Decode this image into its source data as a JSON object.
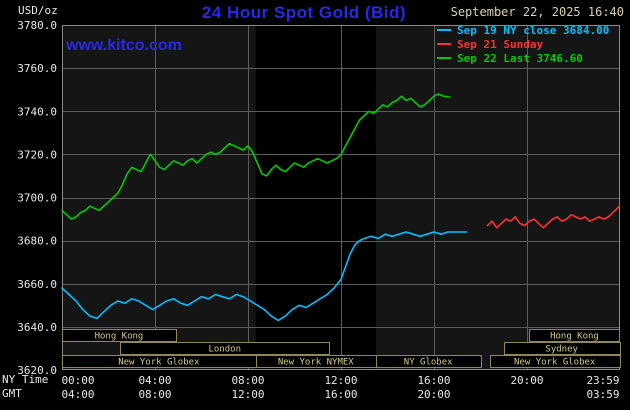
{
  "header": {
    "title": "24 Hour Spot Gold (Bid)",
    "datetime": "September 22, 2025 16:40",
    "unit_label": "USD/oz",
    "watermark": "www.kitco.com"
  },
  "legend": {
    "items": [
      {
        "label": "Sep 19 NY close 3684.00",
        "color": "#00bfff"
      },
      {
        "label": "Sep 21 Sunday",
        "color": "#ff3232"
      },
      {
        "label": "Sep 22 Last 3746.60",
        "color": "#00cc00"
      }
    ]
  },
  "axes": {
    "ny_label": "NY Time",
    "gmt_label": "GMT",
    "y_ticks": [
      {
        "v": 3780,
        "label": "3780.0"
      },
      {
        "v": 3760,
        "label": "3760.0"
      },
      {
        "v": 3740,
        "label": "3740.0"
      },
      {
        "v": 3720,
        "label": "3720.0"
      },
      {
        "v": 3700,
        "label": "3700.0"
      },
      {
        "v": 3680,
        "label": "3680.0"
      },
      {
        "v": 3660,
        "label": "3660.0"
      },
      {
        "v": 3640,
        "label": "3640.0"
      },
      {
        "v": 3620,
        "label": "3620.0"
      }
    ],
    "x_ticks_ny": [
      {
        "t": 0,
        "label": "00:00"
      },
      {
        "t": 4,
        "label": "04:00"
      },
      {
        "t": 8,
        "label": "08:00"
      },
      {
        "t": 12,
        "label": "12:00"
      },
      {
        "t": 16,
        "label": "16:00"
      },
      {
        "t": 20,
        "label": "20:00"
      },
      {
        "t": 23.983,
        "label": "23:59"
      }
    ],
    "x_ticks_gmt": [
      {
        "t": 0,
        "label": "04:00"
      },
      {
        "t": 4,
        "label": "08:00"
      },
      {
        "t": 8,
        "label": "12:00"
      },
      {
        "t": 12,
        "label": "16:00"
      },
      {
        "t": 16,
        "label": "20:00"
      },
      {
        "t": 23.983,
        "label": "03:59"
      }
    ]
  },
  "sessions": [
    {
      "row": 0,
      "start": 0,
      "end": 4.9,
      "label": "Hong Kong"
    },
    {
      "row": 0,
      "start": 20.1,
      "end": 23.983,
      "label": "Hong Kong"
    },
    {
      "row": 1,
      "start": 2.5,
      "end": 11.5,
      "label": "London"
    },
    {
      "row": 1,
      "start": 19.0,
      "end": 23.983,
      "label": "Sydney"
    },
    {
      "row": 2,
      "start": 0,
      "end": 8.33,
      "label": "New York Globex"
    },
    {
      "row": 2,
      "start": 8.33,
      "end": 13.5,
      "label": "New York NYMEX"
    },
    {
      "row": 2,
      "start": 13.5,
      "end": 18.0,
      "label": "NY Globex"
    },
    {
      "row": 2,
      "start": 18.4,
      "end": 23.983,
      "label": "New York Globex"
    }
  ],
  "colors": {
    "background": "#000000",
    "plot_bg": "#151515",
    "band": "#000000",
    "grid": "#5c5c5c",
    "border": "#8a8a8a",
    "axis_text": "#e8e8e8",
    "title": "#2828e8",
    "watermark": "#2828e8",
    "datetime_text": "#d8d0b0",
    "session_border": "#8f8756",
    "session_text": "#d4ca8a",
    "session_fill": "#000000"
  },
  "chart_data": {
    "type": "line",
    "title": "24 Hour Spot Gold (Bid)",
    "xlabel": "NY Time (hours)",
    "ylabel": "USD/oz",
    "xlim": [
      0,
      24
    ],
    "ylim": [
      3620,
      3780
    ],
    "grid": true,
    "legend_position": "top-right",
    "highlight_band": {
      "start": 8.33,
      "end": 13.5,
      "note": "New York NYMEX session"
    },
    "series": [
      {
        "id": "sep19",
        "name": "Sep 19 NY close 3684.00",
        "color": "#00bfff",
        "points": [
          [
            0,
            3658
          ],
          [
            0.3,
            3655
          ],
          [
            0.6,
            3652
          ],
          [
            0.9,
            3648
          ],
          [
            1.2,
            3645
          ],
          [
            1.5,
            3644
          ],
          [
            1.8,
            3647
          ],
          [
            2.1,
            3650
          ],
          [
            2.4,
            3652
          ],
          [
            2.7,
            3651
          ],
          [
            3,
            3653
          ],
          [
            3.3,
            3652
          ],
          [
            3.6,
            3650
          ],
          [
            3.9,
            3648
          ],
          [
            4.2,
            3650
          ],
          [
            4.5,
            3652
          ],
          [
            4.8,
            3653
          ],
          [
            5.1,
            3651
          ],
          [
            5.4,
            3650
          ],
          [
            5.7,
            3652
          ],
          [
            6,
            3654
          ],
          [
            6.3,
            3653
          ],
          [
            6.6,
            3655
          ],
          [
            6.9,
            3654
          ],
          [
            7.2,
            3653
          ],
          [
            7.5,
            3655
          ],
          [
            7.8,
            3654
          ],
          [
            8.1,
            3652
          ],
          [
            8.4,
            3650
          ],
          [
            8.7,
            3648
          ],
          [
            9,
            3645
          ],
          [
            9.3,
            3643
          ],
          [
            9.6,
            3645
          ],
          [
            9.9,
            3648
          ],
          [
            10.2,
            3650
          ],
          [
            10.5,
            3649
          ],
          [
            10.8,
            3651
          ],
          [
            11.1,
            3653
          ],
          [
            11.4,
            3655
          ],
          [
            11.7,
            3658
          ],
          [
            12,
            3662
          ],
          [
            12.2,
            3668
          ],
          [
            12.4,
            3674
          ],
          [
            12.6,
            3678
          ],
          [
            12.8,
            3680
          ],
          [
            13,
            3681
          ],
          [
            13.3,
            3682
          ],
          [
            13.6,
            3681
          ],
          [
            13.9,
            3683
          ],
          [
            14.2,
            3682
          ],
          [
            14.5,
            3683
          ],
          [
            14.8,
            3684
          ],
          [
            15.1,
            3683
          ],
          [
            15.4,
            3682
          ],
          [
            15.7,
            3683
          ],
          [
            16,
            3684
          ],
          [
            16.3,
            3683
          ],
          [
            16.6,
            3684
          ],
          [
            17,
            3684
          ],
          [
            17.4,
            3684
          ]
        ]
      },
      {
        "id": "sep21",
        "name": "Sep 21 Sunday",
        "color": "#ff3232",
        "points": [
          [
            18.3,
            3687
          ],
          [
            18.5,
            3689
          ],
          [
            18.7,
            3686
          ],
          [
            18.9,
            3688
          ],
          [
            19.1,
            3690
          ],
          [
            19.3,
            3689
          ],
          [
            19.5,
            3691
          ],
          [
            19.7,
            3688
          ],
          [
            19.9,
            3687
          ],
          [
            20.1,
            3689
          ],
          [
            20.3,
            3690
          ],
          [
            20.5,
            3688
          ],
          [
            20.7,
            3686
          ],
          [
            20.9,
            3688
          ],
          [
            21.1,
            3690
          ],
          [
            21.3,
            3691
          ],
          [
            21.5,
            3689
          ],
          [
            21.7,
            3690
          ],
          [
            21.9,
            3692
          ],
          [
            22.1,
            3691
          ],
          [
            22.3,
            3690
          ],
          [
            22.5,
            3691
          ],
          [
            22.7,
            3689
          ],
          [
            22.9,
            3690
          ],
          [
            23.1,
            3691
          ],
          [
            23.3,
            3690
          ],
          [
            23.5,
            3691
          ],
          [
            23.7,
            3693
          ],
          [
            23.983,
            3696
          ]
        ]
      },
      {
        "id": "sep22",
        "name": "Sep 22 Last 3746.60",
        "color": "#00cc00",
        "points": [
          [
            0,
            3694
          ],
          [
            0.2,
            3692
          ],
          [
            0.4,
            3690
          ],
          [
            0.6,
            3691
          ],
          [
            0.8,
            3693
          ],
          [
            1,
            3694
          ],
          [
            1.2,
            3696
          ],
          [
            1.4,
            3695
          ],
          [
            1.6,
            3694
          ],
          [
            1.8,
            3696
          ],
          [
            2,
            3698
          ],
          [
            2.2,
            3700
          ],
          [
            2.4,
            3702
          ],
          [
            2.6,
            3706
          ],
          [
            2.8,
            3711
          ],
          [
            3,
            3714
          ],
          [
            3.2,
            3713
          ],
          [
            3.4,
            3712
          ],
          [
            3.6,
            3716
          ],
          [
            3.8,
            3720
          ],
          [
            4,
            3717
          ],
          [
            4.2,
            3714
          ],
          [
            4.4,
            3713
          ],
          [
            4.6,
            3715
          ],
          [
            4.8,
            3717
          ],
          [
            5,
            3716
          ],
          [
            5.2,
            3715
          ],
          [
            5.4,
            3717
          ],
          [
            5.6,
            3718
          ],
          [
            5.8,
            3716
          ],
          [
            6,
            3718
          ],
          [
            6.2,
            3720
          ],
          [
            6.4,
            3721
          ],
          [
            6.6,
            3720
          ],
          [
            6.8,
            3721
          ],
          [
            7,
            3723
          ],
          [
            7.2,
            3725
          ],
          [
            7.4,
            3724
          ],
          [
            7.6,
            3723
          ],
          [
            7.8,
            3722
          ],
          [
            8,
            3724
          ],
          [
            8.2,
            3721
          ],
          [
            8.4,
            3716
          ],
          [
            8.6,
            3711
          ],
          [
            8.8,
            3710
          ],
          [
            9,
            3713
          ],
          [
            9.2,
            3715
          ],
          [
            9.4,
            3713
          ],
          [
            9.6,
            3712
          ],
          [
            9.8,
            3714
          ],
          [
            10,
            3716
          ],
          [
            10.2,
            3715
          ],
          [
            10.4,
            3714
          ],
          [
            10.6,
            3716
          ],
          [
            10.8,
            3717
          ],
          [
            11,
            3718
          ],
          [
            11.2,
            3717
          ],
          [
            11.4,
            3716
          ],
          [
            11.6,
            3717
          ],
          [
            11.8,
            3718
          ],
          [
            12,
            3720
          ],
          [
            12.2,
            3724
          ],
          [
            12.4,
            3728
          ],
          [
            12.6,
            3732
          ],
          [
            12.8,
            3736
          ],
          [
            13,
            3738
          ],
          [
            13.2,
            3740
          ],
          [
            13.4,
            3739
          ],
          [
            13.6,
            3741
          ],
          [
            13.8,
            3743
          ],
          [
            14,
            3742
          ],
          [
            14.2,
            3744
          ],
          [
            14.4,
            3745
          ],
          [
            14.6,
            3747
          ],
          [
            14.8,
            3745
          ],
          [
            15,
            3746
          ],
          [
            15.2,
            3744
          ],
          [
            15.4,
            3742
          ],
          [
            15.6,
            3743
          ],
          [
            15.8,
            3745
          ],
          [
            16,
            3747
          ],
          [
            16.2,
            3748
          ],
          [
            16.4,
            3747
          ],
          [
            16.67,
            3746.6
          ]
        ]
      }
    ]
  }
}
